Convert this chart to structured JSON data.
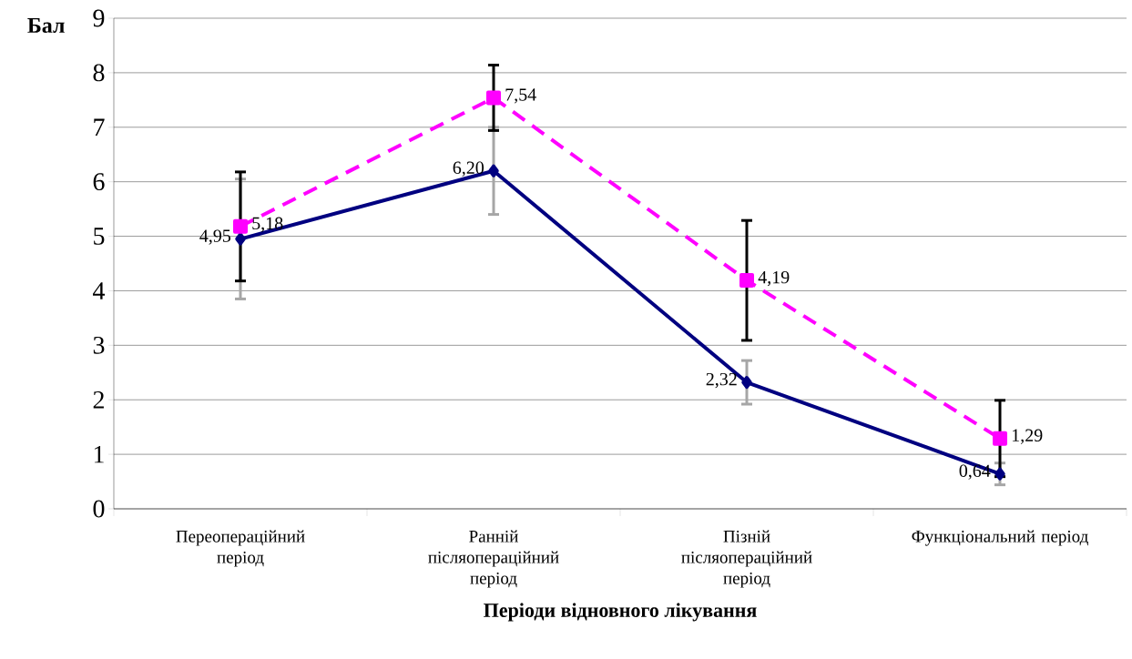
{
  "chart_data": {
    "type": "line",
    "xlabel": "Періоди відновного лікування",
    "ylabel": "Бал",
    "categories": [
      "Переопераційний період",
      "Ранній післяопераційний період",
      "Пізній післяопераційний період",
      "Функціональний період"
    ],
    "ylim": [
      0,
      9
    ],
    "yticks": [
      0,
      1,
      2,
      3,
      4,
      5,
      6,
      7,
      8,
      9
    ],
    "grid": "y",
    "series": [
      {
        "color": "#000080",
        "values": [
          4.95,
          6.2,
          2.32,
          0.64
        ],
        "errors": [
          1.1,
          0.8,
          0.4,
          0.2
        ],
        "value_labels": [
          "4,95",
          "6,20",
          "2,32",
          "0,64"
        ],
        "marker": "diamond",
        "line_style": "solid"
      },
      {
        "color": "#ff00ff",
        "values": [
          5.18,
          7.54,
          4.19,
          1.29
        ],
        "errors": [
          1.0,
          0.6,
          1.1,
          0.7
        ],
        "value_labels": [
          "5,18",
          "7,54",
          "4,19",
          "1,29"
        ],
        "marker": "square",
        "line_style": "dashed"
      }
    ]
  }
}
